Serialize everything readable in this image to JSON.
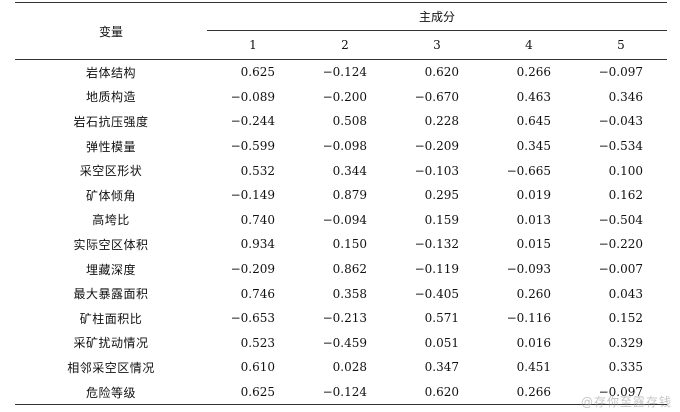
{
  "table": {
    "header": {
      "variable": "变量",
      "group": "主成分",
      "components": [
        "1",
        "2",
        "3",
        "4",
        "5"
      ]
    },
    "rows": [
      {
        "name": "岩体结构",
        "values": [
          "0.625",
          "−0.124",
          "0.620",
          "0.266",
          "−0.097"
        ]
      },
      {
        "name": "地质构造",
        "values": [
          "−0.089",
          "−0.200",
          "−0.670",
          "0.463",
          "0.346"
        ]
      },
      {
        "name": "岩石抗压强度",
        "values": [
          "−0.244",
          "0.508",
          "0.228",
          "0.645",
          "−0.043"
        ]
      },
      {
        "name": "弹性模量",
        "values": [
          "−0.599",
          "−0.098",
          "−0.209",
          "0.345",
          "−0.534"
        ]
      },
      {
        "name": "采空区形状",
        "values": [
          "0.532",
          "0.344",
          "−0.103",
          "−0.665",
          "0.100"
        ]
      },
      {
        "name": "矿体倾角",
        "values": [
          "−0.149",
          "0.879",
          "0.295",
          "0.019",
          "0.162"
        ]
      },
      {
        "name": "高垮比",
        "values": [
          "0.740",
          "−0.094",
          "0.159",
          "0.013",
          "−0.504"
        ]
      },
      {
        "name": "实际空区体积",
        "values": [
          "0.934",
          "0.150",
          "−0.132",
          "0.015",
          "−0.220"
        ]
      },
      {
        "name": "埋藏深度",
        "values": [
          "−0.209",
          "0.862",
          "−0.119",
          "−0.093",
          "−0.007"
        ]
      },
      {
        "name": "最大暴露面积",
        "values": [
          "0.746",
          "0.358",
          "−0.405",
          "0.260",
          "0.043"
        ]
      },
      {
        "name": "矿柱面积比",
        "values": [
          "−0.653",
          "−0.213",
          "0.571",
          "−0.116",
          "0.152"
        ]
      },
      {
        "name": "采矿扰动情况",
        "values": [
          "0.523",
          "−0.459",
          "0.051",
          "0.016",
          "0.329"
        ]
      },
      {
        "name": "相邻采空区情况",
        "values": [
          "0.610",
          "0.028",
          "0.347",
          "0.451",
          "0.335"
        ]
      },
      {
        "name": "危险等级",
        "values": [
          "0.625",
          "−0.124",
          "0.620",
          "0.266",
          "−0.097"
        ]
      }
    ]
  },
  "watermark": "@存你至露存钱"
}
